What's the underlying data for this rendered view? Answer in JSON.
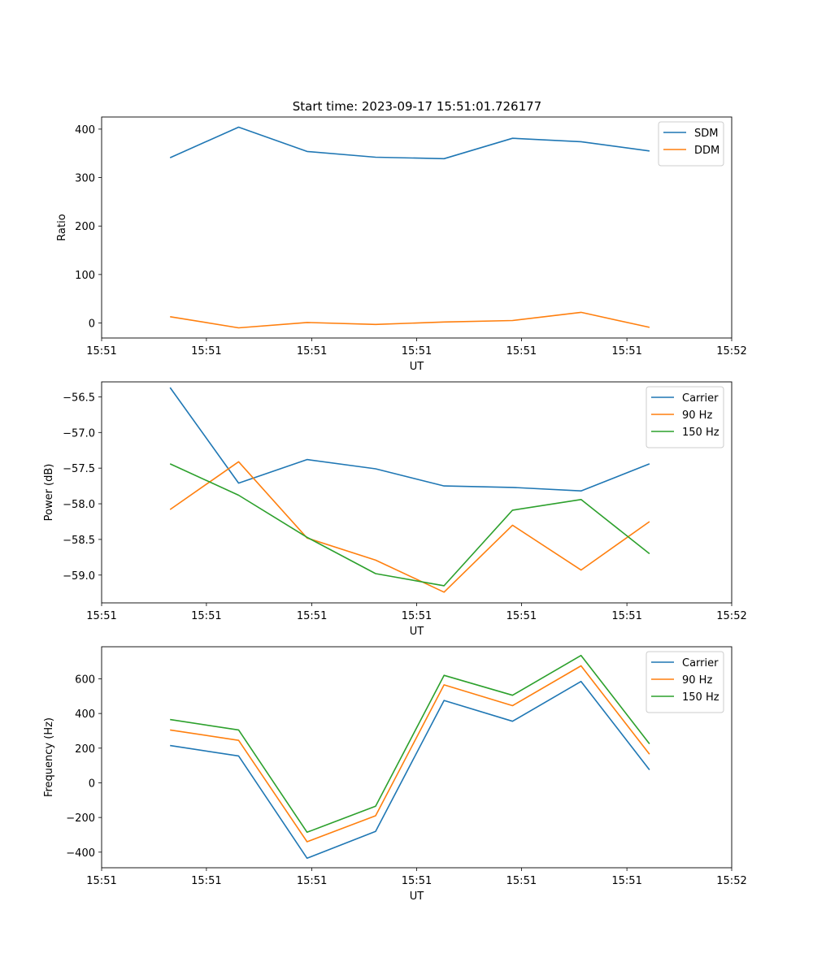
{
  "figure_title": "Start time: 2023-09-17 15:51:01.726177",
  "colors": {
    "blue": "#1f77b4",
    "orange": "#ff7f0e",
    "green": "#2ca02c"
  },
  "chart_data": [
    {
      "type": "line",
      "title": "Start time: 2023-09-17 15:51:01.726177",
      "xlabel": "UT",
      "ylabel": "Ratio",
      "x": [
        1,
        2,
        3,
        4,
        5,
        6,
        7,
        8
      ],
      "xlim": [
        0,
        9.2
      ],
      "xticks": [
        0,
        1.53,
        3.07,
        4.6,
        6.13,
        7.67,
        9.2
      ],
      "xtick_labels": [
        "15:51",
        "15:51",
        "15:51",
        "15:51",
        "15:51",
        "15:51",
        "15:52"
      ],
      "ylim": [
        -31,
        425
      ],
      "yticks": [
        0,
        100,
        200,
        300,
        400
      ],
      "ytick_labels": [
        "0",
        "100",
        "200",
        "300",
        "400"
      ],
      "legend": "top-right",
      "series": [
        {
          "name": "SDM",
          "color": "#1f77b4",
          "values": [
            341,
            404,
            354,
            342,
            339,
            381,
            374,
            355
          ]
        },
        {
          "name": "DDM",
          "color": "#ff7f0e",
          "values": [
            13,
            -10,
            1,
            -3,
            2,
            5,
            22,
            -9
          ]
        }
      ]
    },
    {
      "type": "line",
      "title": "",
      "xlabel": "UT",
      "ylabel": "Power (dB)",
      "x": [
        1,
        2,
        3,
        4,
        5,
        6,
        7,
        8
      ],
      "xlim": [
        0,
        9.2
      ],
      "xticks": [
        0,
        1.53,
        3.07,
        4.6,
        6.13,
        7.67,
        9.2
      ],
      "xtick_labels": [
        "15:51",
        "15:51",
        "15:51",
        "15:51",
        "15:51",
        "15:51",
        "15:52"
      ],
      "ylim": [
        -59.39,
        -56.29
      ],
      "yticks": [
        -59.0,
        -58.5,
        -58.0,
        -57.5,
        -57.0,
        -56.5
      ],
      "ytick_labels": [
        "−59.0",
        "−58.5",
        "−58.0",
        "−57.5",
        "−57.0",
        "−56.5"
      ],
      "legend": "top-right",
      "series": [
        {
          "name": "Carrier",
          "color": "#1f77b4",
          "values": [
            -56.37,
            -57.71,
            -57.38,
            -57.51,
            -57.75,
            -57.77,
            -57.82,
            -57.44
          ]
        },
        {
          "name": "90 Hz",
          "color": "#ff7f0e",
          "values": [
            -58.08,
            -57.41,
            -58.48,
            -58.79,
            -59.24,
            -58.3,
            -58.93,
            -58.25
          ]
        },
        {
          "name": "150 Hz",
          "color": "#2ca02c",
          "values": [
            -57.44,
            -57.88,
            -58.47,
            -58.98,
            -59.15,
            -58.09,
            -57.94,
            -58.7
          ]
        }
      ]
    },
    {
      "type": "line",
      "title": "",
      "xlabel": "UT",
      "ylabel": "Frequency (Hz)",
      "x": [
        1,
        2,
        3,
        4,
        5,
        6,
        7,
        8
      ],
      "xlim": [
        0,
        9.2
      ],
      "xticks": [
        0,
        1.53,
        3.07,
        4.6,
        6.13,
        7.67,
        9.2
      ],
      "xtick_labels": [
        "15:51",
        "15:51",
        "15:51",
        "15:51",
        "15:51",
        "15:51",
        "15:52"
      ],
      "ylim": [
        -490,
        785
      ],
      "yticks": [
        -400,
        -200,
        0,
        200,
        400,
        600
      ],
      "ytick_labels": [
        "−400",
        "−200",
        "0",
        "200",
        "400",
        "600"
      ],
      "legend": "top-right",
      "series": [
        {
          "name": "Carrier",
          "color": "#1f77b4",
          "values": [
            215,
            155,
            -435,
            -280,
            475,
            355,
            585,
            75
          ]
        },
        {
          "name": "90 Hz",
          "color": "#ff7f0e",
          "values": [
            305,
            245,
            -340,
            -190,
            565,
            445,
            675,
            165
          ]
        },
        {
          "name": "150 Hz",
          "color": "#2ca02c",
          "values": [
            365,
            305,
            -285,
            -135,
            620,
            505,
            735,
            225
          ]
        }
      ]
    }
  ]
}
